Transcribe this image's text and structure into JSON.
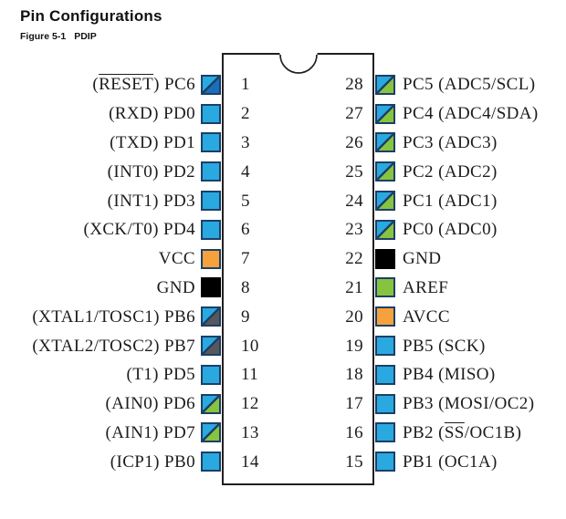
{
  "title": "Pin Configurations",
  "figure": {
    "number": "Figure 5-1",
    "name": "PDIP"
  },
  "colors": {
    "io": "#29a9e0",
    "reset": "#1a6fba",
    "xtal": "#57585b",
    "analog": "#86c440",
    "aref": "#86c440",
    "power": "#f7a13d",
    "ground": "#000000",
    "square_border": "#1c3f66",
    "chip_outline": "#231f20"
  },
  "chip": {
    "package": "PDIP",
    "pin_count": 28,
    "left_pins": [
      {
        "number": "1",
        "pre": "(",
        "over": "RESET",
        "post": ") PC6",
        "type": "reset"
      },
      {
        "number": "2",
        "pre": "(RXD) PD0",
        "over": "",
        "post": "",
        "type": "io"
      },
      {
        "number": "3",
        "pre": "(TXD) PD1",
        "over": "",
        "post": "",
        "type": "io"
      },
      {
        "number": "4",
        "pre": "(INT0) PD2",
        "over": "",
        "post": "",
        "type": "io"
      },
      {
        "number": "5",
        "pre": "(INT1) PD3",
        "over": "",
        "post": "",
        "type": "io"
      },
      {
        "number": "6",
        "pre": "(XCK/T0) PD4",
        "over": "",
        "post": "",
        "type": "io"
      },
      {
        "number": "7",
        "pre": "VCC",
        "over": "",
        "post": "",
        "type": "power"
      },
      {
        "number": "8",
        "pre": "GND",
        "over": "",
        "post": "",
        "type": "ground"
      },
      {
        "number": "9",
        "pre": "(XTAL1/TOSC1) PB6",
        "over": "",
        "post": "",
        "type": "xtal"
      },
      {
        "number": "10",
        "pre": "(XTAL2/TOSC2) PB7",
        "over": "",
        "post": "",
        "type": "xtal"
      },
      {
        "number": "11",
        "pre": "(T1) PD5",
        "over": "",
        "post": "",
        "type": "io"
      },
      {
        "number": "12",
        "pre": "(AIN0) PD6",
        "over": "",
        "post": "",
        "type": "analog"
      },
      {
        "number": "13",
        "pre": "(AIN1) PD7",
        "over": "",
        "post": "",
        "type": "analog"
      },
      {
        "number": "14",
        "pre": "(ICP1) PB0",
        "over": "",
        "post": "",
        "type": "io"
      }
    ],
    "right_pins": [
      {
        "number": "28",
        "pre": "PC5 (ADC5/SCL)",
        "over": "",
        "post": "",
        "type": "analog"
      },
      {
        "number": "27",
        "pre": "PC4 (ADC4/SDA)",
        "over": "",
        "post": "",
        "type": "analog"
      },
      {
        "number": "26",
        "pre": "PC3 (ADC3)",
        "over": "",
        "post": "",
        "type": "analog"
      },
      {
        "number": "25",
        "pre": "PC2 (ADC2)",
        "over": "",
        "post": "",
        "type": "analog"
      },
      {
        "number": "24",
        "pre": "PC1 (ADC1)",
        "over": "",
        "post": "",
        "type": "analog"
      },
      {
        "number": "23",
        "pre": "PC0 (ADC0)",
        "over": "",
        "post": "",
        "type": "analog"
      },
      {
        "number": "22",
        "pre": "GND",
        "over": "",
        "post": "",
        "type": "ground"
      },
      {
        "number": "21",
        "pre": "AREF",
        "over": "",
        "post": "",
        "type": "aref"
      },
      {
        "number": "20",
        "pre": "AVCC",
        "over": "",
        "post": "",
        "type": "power"
      },
      {
        "number": "19",
        "pre": "PB5 (SCK)",
        "over": "",
        "post": "",
        "type": "io"
      },
      {
        "number": "18",
        "pre": "PB4 (MISO)",
        "over": "",
        "post": "",
        "type": "io"
      },
      {
        "number": "17",
        "pre": "PB3 (MOSI/OC2)",
        "over": "",
        "post": "",
        "type": "io"
      },
      {
        "number": "16",
        "pre": "PB2 (",
        "over": "SS",
        "post": "/OC1B)",
        "type": "io"
      },
      {
        "number": "15",
        "pre": "PB1 (OC1A)",
        "over": "",
        "post": "",
        "type": "io"
      }
    ]
  }
}
